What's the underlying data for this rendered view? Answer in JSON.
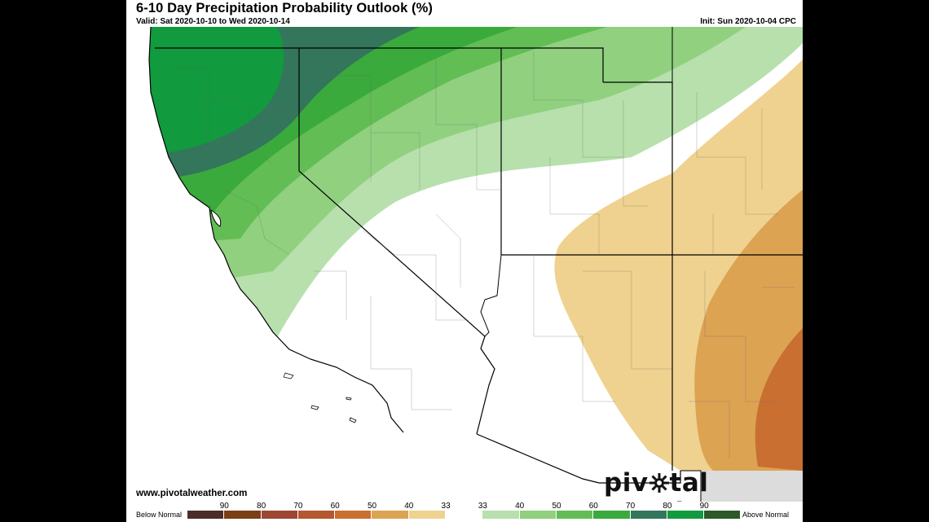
{
  "header": {
    "title": "6-10 Day Precipitation Probability Outlook (%)",
    "valid": "Valid: Sat 2020-10-10 to Wed 2020-10-14",
    "init": "Init: Sun 2020-10-04 CPC"
  },
  "footer": {
    "website": "www.pivotalweather.com",
    "brand_before": "piv",
    "brand_after": "tal weather"
  },
  "legend": {
    "below_label": "Below Normal",
    "above_label": "Above Normal",
    "tick_labels": [
      "90",
      "80",
      "70",
      "60",
      "50",
      "40",
      "33",
      "33",
      "40",
      "50",
      "60",
      "70",
      "80",
      "90"
    ],
    "swatches": [
      {
        "category": "below-90",
        "color": "#4b2e2a"
      },
      {
        "category": "below-80",
        "color": "#7b3e17"
      },
      {
        "category": "below-70",
        "color": "#9c4633"
      },
      {
        "category": "below-60",
        "color": "#b5572f"
      },
      {
        "category": "below-50",
        "color": "#c96f32"
      },
      {
        "category": "below-40",
        "color": "#dca353"
      },
      {
        "category": "below-33",
        "color": "#efd28f"
      },
      {
        "category": "normal",
        "color": "#ffffff"
      },
      {
        "category": "above-33",
        "color": "#b7e0ad"
      },
      {
        "category": "above-40",
        "color": "#90d07f"
      },
      {
        "category": "above-50",
        "color": "#62bd55"
      },
      {
        "category": "above-60",
        "color": "#3aaa3c"
      },
      {
        "category": "above-70",
        "color": "#33765b"
      },
      {
        "category": "above-80",
        "color": "#119a3e"
      },
      {
        "category": "above-90",
        "color": "#2b5a28"
      }
    ]
  },
  "map": {
    "region": "Southwestern United States",
    "colors": {
      "above_33": "#b7e0ad",
      "above_40": "#90d07f",
      "above_50": "#62bd55",
      "above_60": "#3aaa3c",
      "above_70": "#33765b",
      "above_80": "#119a3e",
      "below_33": "#efd28f",
      "below_40": "#dca353",
      "below_50": "#c96f32",
      "no_data_land": "#dcdcdc"
    }
  }
}
